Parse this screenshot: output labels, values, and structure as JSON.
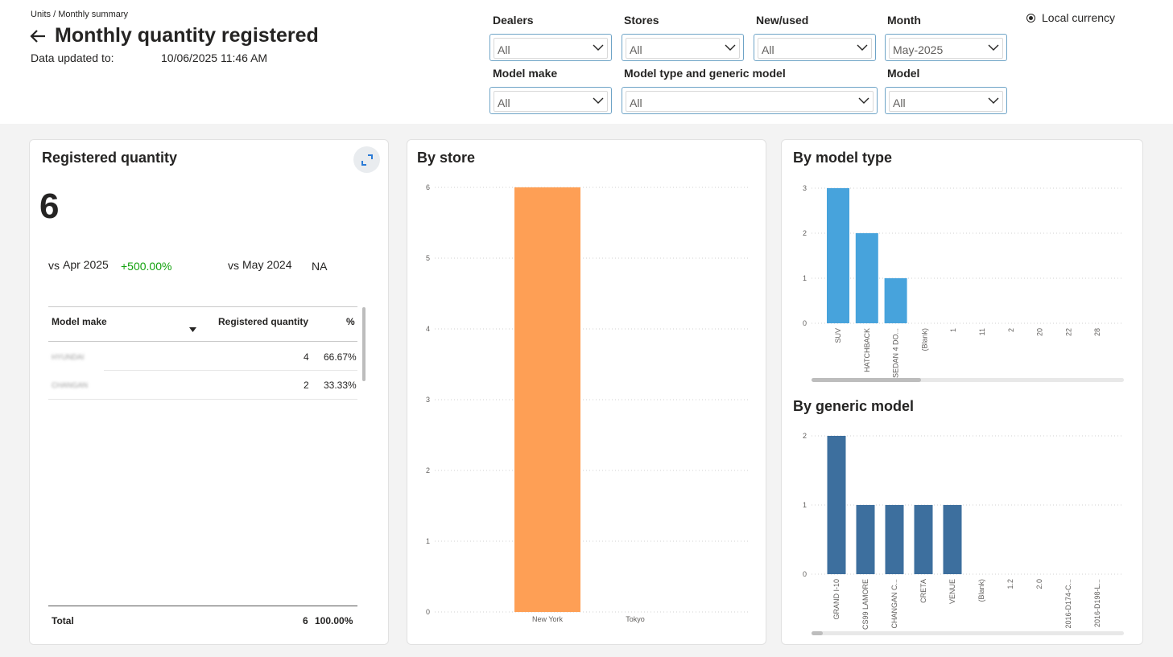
{
  "header": {
    "breadcrumb": "Units / Monthly summary",
    "title": "Monthly quantity registered",
    "updated_label": "Data updated to:",
    "updated_value": "10/06/2025 11:46 AM"
  },
  "filters": {
    "dealers": {
      "label": "Dealers",
      "value": "All"
    },
    "stores": {
      "label": "Stores",
      "value": "All"
    },
    "new_used": {
      "label": "New/used",
      "value": "All"
    },
    "month": {
      "label": "Month",
      "value": "May-2025"
    },
    "model_make": {
      "label": "Model make",
      "value": "All"
    },
    "model_type_generic": {
      "label": "Model type and generic model",
      "value": "All"
    },
    "model": {
      "label": "Model",
      "value": "All"
    },
    "currency": {
      "label": "Local currency",
      "selected": true
    }
  },
  "registered": {
    "title": "Registered quantity",
    "total": "6",
    "vs_prev_label": "vs",
    "vs_prev_period": "Apr 2025",
    "vs_prev_value": "+500.00%",
    "vs_year_label": "vs",
    "vs_year_period": "May 2024",
    "vs_year_value": "NA",
    "table": {
      "headers": {
        "make": "Model make",
        "qty": "Registered quantity",
        "pct": "%"
      },
      "rows": [
        {
          "make": "HYUNDAI",
          "qty": "4",
          "pct": "66.67%"
        },
        {
          "make": "CHANGAN",
          "qty": "2",
          "pct": "33.33%"
        }
      ],
      "total": {
        "label": "Total",
        "qty": "6",
        "pct": "100.00%"
      }
    }
  },
  "store_card": {
    "title": "By store"
  },
  "model_type_card": {
    "title": "By model type"
  },
  "generic_card": {
    "title": "By generic model"
  },
  "colors": {
    "store_bar": "#fe9f55",
    "model_type_bar": "#47a3dc",
    "generic_bar": "#3d6f9e"
  },
  "chart_data": [
    {
      "id": "by_store",
      "type": "bar",
      "title": "By store",
      "categories": [
        "New York",
        "Tokyo"
      ],
      "values": [
        6,
        0
      ],
      "ylim": [
        0,
        6
      ],
      "yticks": [
        0,
        1,
        2,
        3,
        4,
        5,
        6
      ],
      "grid": true
    },
    {
      "id": "by_model_type",
      "type": "bar",
      "title": "By model type",
      "categories": [
        "SUV",
        "HATCHBACK",
        "SEDAN 4 DO...",
        "(Blank)",
        "1",
        "11",
        "2",
        "20",
        "22",
        "28"
      ],
      "values": [
        3,
        2,
        1,
        0,
        0,
        0,
        0,
        0,
        0,
        0
      ],
      "ylim": [
        0,
        3
      ],
      "yticks": [
        0,
        1,
        2,
        3
      ],
      "grid": true
    },
    {
      "id": "by_generic_model",
      "type": "bar",
      "title": "By generic model",
      "categories": [
        "GRAND I-10",
        "CS99 LAMORE",
        "CHANGAN C...",
        "CRETA",
        "VENUE",
        "(Blank)",
        "1.2",
        "2.0",
        "2016-D174-C...",
        "2016-D198-L..."
      ],
      "values": [
        2,
        1,
        1,
        1,
        1,
        0,
        0,
        0,
        0,
        0
      ],
      "ylim": [
        0,
        2
      ],
      "yticks": [
        0,
        1,
        2
      ],
      "grid": true
    }
  ]
}
